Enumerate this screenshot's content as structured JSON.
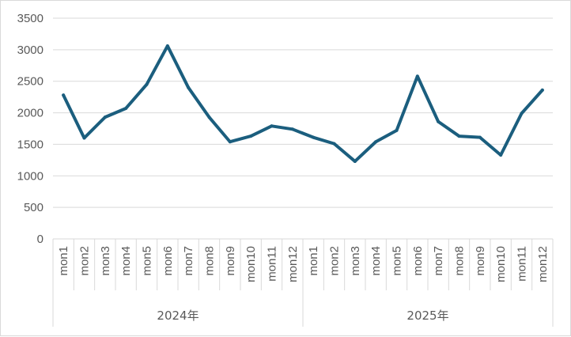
{
  "chart_data": {
    "type": "line",
    "title": "",
    "xlabel": "",
    "ylabel": "",
    "ylim": [
      0,
      3500
    ],
    "yticks": [
      0,
      500,
      1000,
      1500,
      2000,
      2500,
      3000,
      3500
    ],
    "grid": "horizontal",
    "legend": "none",
    "line_color": "#1b5e7e",
    "groups": [
      {
        "label": "2024年",
        "categories": [
          "mon1",
          "mon2",
          "mon3",
          "mon4",
          "mon5",
          "mon6",
          "mon7",
          "mon8",
          "mon9",
          "mon10",
          "mon11",
          "mon12"
        ]
      },
      {
        "label": "2025年",
        "categories": [
          "mon1",
          "mon2",
          "mon3",
          "mon4",
          "mon5",
          "mon6",
          "mon7",
          "mon8",
          "mon9",
          "mon10",
          "mon11",
          "mon12"
        ]
      }
    ],
    "series": [
      {
        "values": [
          2280,
          1600,
          1930,
          2070,
          2450,
          3060,
          2400,
          1930,
          1540,
          1630,
          1790,
          1740,
          1610,
          1510,
          1230,
          1540,
          1720,
          2580,
          1860,
          1630,
          1610,
          1330,
          1990,
          2360
        ]
      }
    ]
  }
}
